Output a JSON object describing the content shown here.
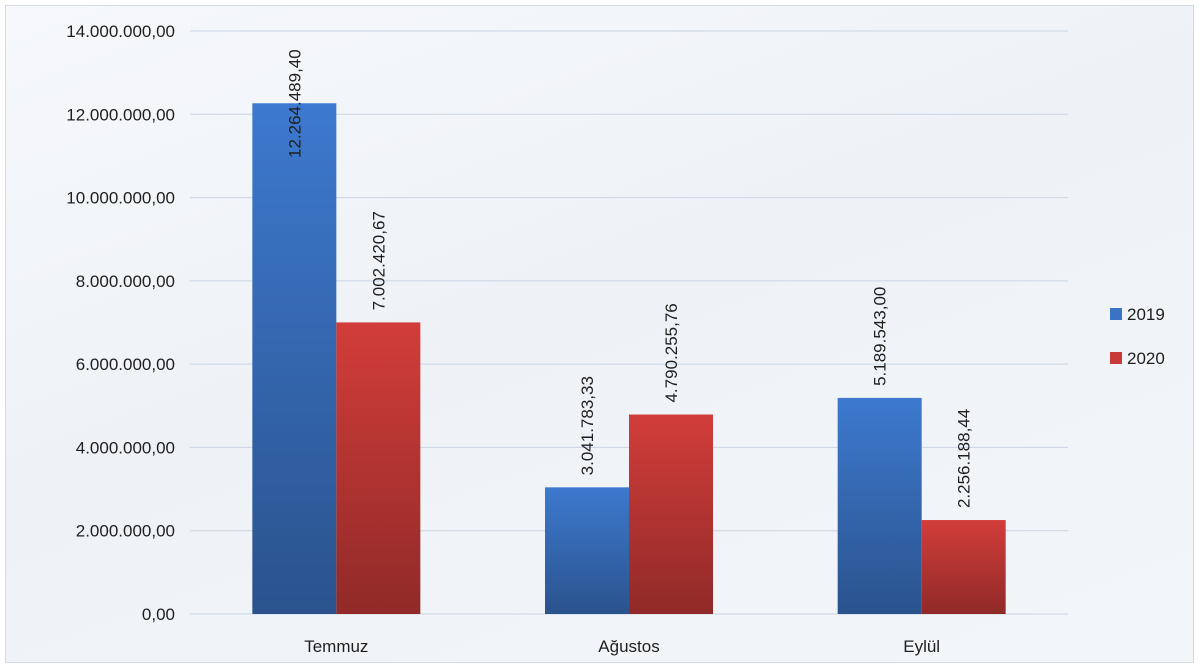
{
  "chart_data": {
    "type": "bar",
    "categories": [
      "Temmuz",
      "Ağustos",
      "Eylül"
    ],
    "series": [
      {
        "name": "2019",
        "values": [
          12264489.4,
          3041783.33,
          5189543.0
        ],
        "labels": [
          "12.264.489,40",
          "3.041.783,33",
          "5.189.543,00"
        ],
        "color": "#3a73c4"
      },
      {
        "name": "2020",
        "values": [
          7002420.67,
          4790255.76,
          2256188.44
        ],
        "labels": [
          "7.002.420,67",
          "4.790.255,76",
          "2.256.188,44"
        ],
        "color": "#c83a37"
      }
    ],
    "y_ticks": [
      {
        "value": 0,
        "label": "0,00"
      },
      {
        "value": 2000000,
        "label": "2.000.000,00"
      },
      {
        "value": 4000000,
        "label": "4.000.000,00"
      },
      {
        "value": 6000000,
        "label": "6.000.000,00"
      },
      {
        "value": 8000000,
        "label": "8.000.000,00"
      },
      {
        "value": 10000000,
        "label": "10.000.000,00"
      },
      {
        "value": 12000000,
        "label": "12.000.000,00"
      },
      {
        "value": 14000000,
        "label": "14.000.000,00"
      }
    ],
    "ylim": [
      0,
      14000000
    ],
    "grid": true,
    "legend_position": "right",
    "title": "",
    "xlabel": "",
    "ylabel": ""
  }
}
